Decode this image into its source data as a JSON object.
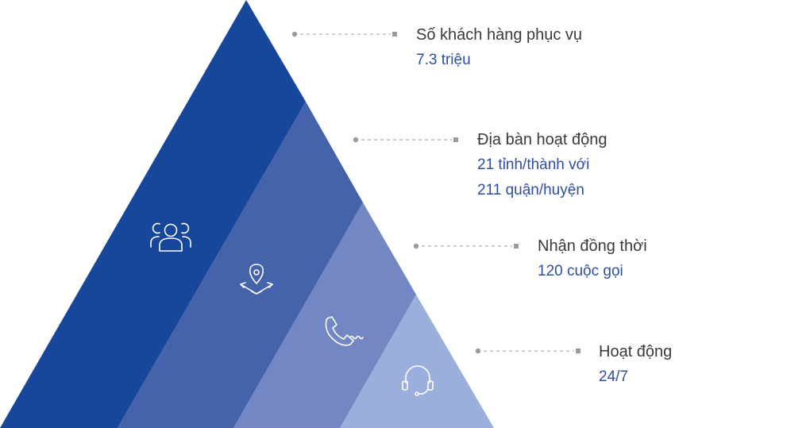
{
  "colors": {
    "band_1": "#17479b",
    "band_2": "#4563aa",
    "band_3": "#7287c3",
    "band_4": "#9aafdb",
    "connector": "#9a9a9a",
    "title_text": "#3a3a3a",
    "value_text": "#2f4ea0",
    "icon_stroke": "#ffffff"
  },
  "tiers": [
    {
      "icon": "people-group-icon",
      "title": "Số khách hàng phục vụ",
      "lines": [
        "7.3 triệu"
      ]
    },
    {
      "icon": "map-location-pin-icon",
      "title": "Địa bàn hoạt động",
      "lines": [
        "21 tỉnh/thành với",
        "211 quận/huyện"
      ]
    },
    {
      "icon": "phone-handset-icon",
      "title": "Nhận đồng thời",
      "lines": [
        "120 cuộc gọi"
      ]
    },
    {
      "icon": "headset-icon",
      "title": "Hoạt động",
      "lines": [
        "24/7"
      ]
    }
  ]
}
